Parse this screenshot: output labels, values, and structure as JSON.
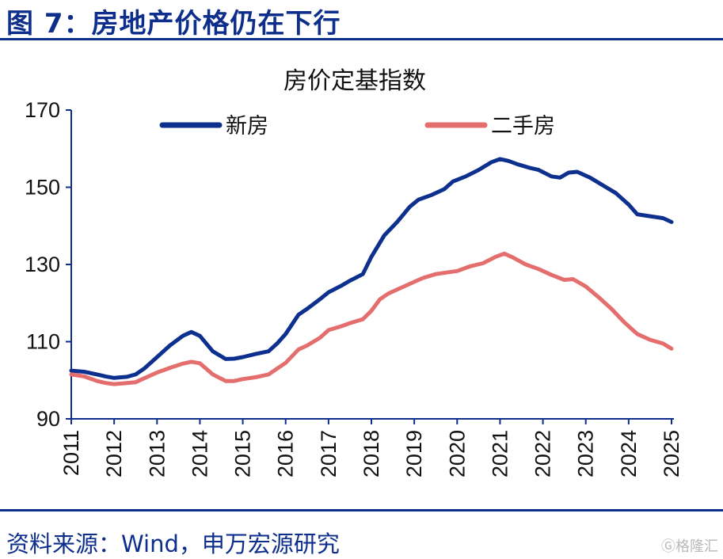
{
  "figure_title": "图 7：房地产价格仍在下行",
  "source_note": "资料来源：Wind，申万宏源研究",
  "watermark": "Ⓖ格隆汇",
  "colors": {
    "brand": "#0e2e8c",
    "new_homes": "#0d2f8e",
    "second_hand": "#e46d6d",
    "axis": "#0e2e8c"
  },
  "chart_data": {
    "type": "line",
    "title": "房价定基指数",
    "xlabel": "",
    "ylabel": "",
    "ylim": [
      90,
      170
    ],
    "yticks": [
      90,
      110,
      130,
      150,
      170
    ],
    "xlim": [
      2011,
      2025
    ],
    "xticks": [
      "2011",
      "2012",
      "2013",
      "2014",
      "2015",
      "2016",
      "2017",
      "2018",
      "2019",
      "2020",
      "2021",
      "2022",
      "2023",
      "2024",
      "2025"
    ],
    "grid": false,
    "legend_position": "top",
    "series": [
      {
        "name": "新房",
        "color": "#0d2f8e",
        "points": [
          [
            2011.0,
            102.5
          ],
          [
            2011.3,
            102.2
          ],
          [
            2011.6,
            101.5
          ],
          [
            2011.8,
            101.0
          ],
          [
            2012.0,
            100.6
          ],
          [
            2012.3,
            100.9
          ],
          [
            2012.5,
            101.5
          ],
          [
            2012.7,
            103.0
          ],
          [
            2013.0,
            106.0
          ],
          [
            2013.3,
            109.0
          ],
          [
            2013.6,
            111.5
          ],
          [
            2013.8,
            112.5
          ],
          [
            2014.0,
            111.5
          ],
          [
            2014.3,
            107.5
          ],
          [
            2014.6,
            105.5
          ],
          [
            2014.8,
            105.6
          ],
          [
            2015.0,
            106.0
          ],
          [
            2015.3,
            106.8
          ],
          [
            2015.6,
            107.5
          ],
          [
            2015.8,
            109.5
          ],
          [
            2016.0,
            112.0
          ],
          [
            2016.3,
            117.0
          ],
          [
            2016.5,
            118.5
          ],
          [
            2016.8,
            121.0
          ],
          [
            2017.0,
            122.8
          ],
          [
            2017.3,
            124.5
          ],
          [
            2017.5,
            125.8
          ],
          [
            2017.8,
            127.5
          ],
          [
            2018.0,
            132.0
          ],
          [
            2018.3,
            137.5
          ],
          [
            2018.6,
            141.0
          ],
          [
            2018.9,
            145.0
          ],
          [
            2019.1,
            146.8
          ],
          [
            2019.4,
            148.0
          ],
          [
            2019.7,
            149.5
          ],
          [
            2019.9,
            151.5
          ],
          [
            2020.2,
            152.8
          ],
          [
            2020.5,
            154.5
          ],
          [
            2020.8,
            156.5
          ],
          [
            2021.0,
            157.3
          ],
          [
            2021.2,
            156.8
          ],
          [
            2021.4,
            156.0
          ],
          [
            2021.7,
            155.0
          ],
          [
            2021.9,
            154.5
          ],
          [
            2022.2,
            152.8
          ],
          [
            2022.4,
            152.5
          ],
          [
            2022.6,
            153.8
          ],
          [
            2022.8,
            154.0
          ],
          [
            2023.1,
            152.5
          ],
          [
            2023.4,
            150.5
          ],
          [
            2023.7,
            148.5
          ],
          [
            2024.0,
            145.5
          ],
          [
            2024.2,
            143.0
          ],
          [
            2024.5,
            142.5
          ],
          [
            2024.8,
            142.0
          ],
          [
            2025.0,
            141.0
          ]
        ]
      },
      {
        "name": "二手房",
        "color": "#e46d6d",
        "points": [
          [
            2011.0,
            101.5
          ],
          [
            2011.3,
            101.0
          ],
          [
            2011.6,
            99.8
          ],
          [
            2011.8,
            99.3
          ],
          [
            2012.0,
            99.0
          ],
          [
            2012.3,
            99.3
          ],
          [
            2012.5,
            99.5
          ],
          [
            2012.7,
            100.5
          ],
          [
            2013.0,
            102.0
          ],
          [
            2013.3,
            103.2
          ],
          [
            2013.6,
            104.3
          ],
          [
            2013.8,
            104.8
          ],
          [
            2014.0,
            104.4
          ],
          [
            2014.3,
            101.5
          ],
          [
            2014.6,
            99.8
          ],
          [
            2014.8,
            99.8
          ],
          [
            2015.0,
            100.3
          ],
          [
            2015.3,
            100.8
          ],
          [
            2015.6,
            101.5
          ],
          [
            2015.8,
            103.0
          ],
          [
            2016.0,
            104.5
          ],
          [
            2016.3,
            108.0
          ],
          [
            2016.5,
            109.0
          ],
          [
            2016.8,
            111.0
          ],
          [
            2017.0,
            113.0
          ],
          [
            2017.3,
            114.0
          ],
          [
            2017.5,
            114.8
          ],
          [
            2017.8,
            115.8
          ],
          [
            2018.0,
            118.0
          ],
          [
            2018.2,
            121.0
          ],
          [
            2018.4,
            122.5
          ],
          [
            2018.6,
            123.5
          ],
          [
            2018.9,
            125.0
          ],
          [
            2019.2,
            126.5
          ],
          [
            2019.5,
            127.5
          ],
          [
            2019.8,
            128.0
          ],
          [
            2020.0,
            128.3
          ],
          [
            2020.3,
            129.5
          ],
          [
            2020.6,
            130.3
          ],
          [
            2020.9,
            132.0
          ],
          [
            2021.1,
            132.8
          ],
          [
            2021.3,
            131.8
          ],
          [
            2021.6,
            130.0
          ],
          [
            2021.9,
            128.8
          ],
          [
            2022.2,
            127.3
          ],
          [
            2022.5,
            126.0
          ],
          [
            2022.7,
            126.2
          ],
          [
            2023.0,
            124.3
          ],
          [
            2023.3,
            121.5
          ],
          [
            2023.6,
            118.5
          ],
          [
            2023.9,
            115.0
          ],
          [
            2024.2,
            112.0
          ],
          [
            2024.5,
            110.5
          ],
          [
            2024.8,
            109.5
          ],
          [
            2025.0,
            108.2
          ]
        ]
      }
    ]
  }
}
